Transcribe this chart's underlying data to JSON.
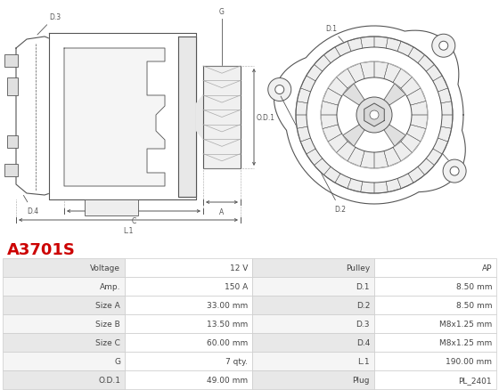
{
  "title": "A3701S",
  "title_color": "#cc0000",
  "background_color": "#ffffff",
  "table": {
    "left_col1_headers": [
      "Voltage",
      "Amp.",
      "Size A",
      "Size B",
      "Size C",
      "G",
      "O.D.1"
    ],
    "left_col2_values": [
      "12 V",
      "150 A",
      "33.00 mm",
      "13.50 mm",
      "60.00 mm",
      "7 qty.",
      "49.00 mm"
    ],
    "right_col1_headers": [
      "Pulley",
      "D.1",
      "D.2",
      "D.3",
      "D.4",
      "L.1",
      "Plug"
    ],
    "right_col2_values": [
      "AP",
      "8.50 mm",
      "8.50 mm",
      "M8x1.25 mm",
      "M8x1.25 mm",
      "190.00 mm",
      "PL_2401"
    ]
  },
  "row_colors": [
    "#e8e8e8",
    "#f5f5f5"
  ],
  "border_color": "#cccccc",
  "text_color": "#444444",
  "dim_color": "#555555",
  "line_color": "#555555"
}
